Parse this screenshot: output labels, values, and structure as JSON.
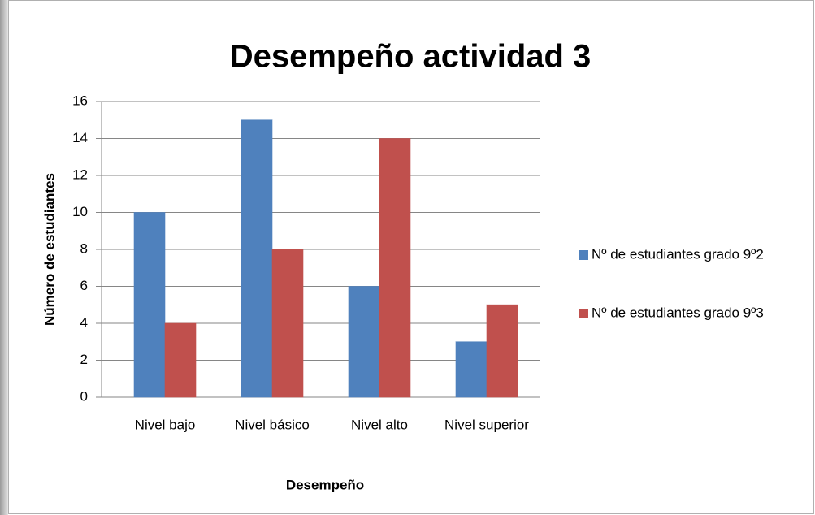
{
  "chart_data": {
    "type": "bar",
    "title": "Desempeño actividad 3",
    "x_label": "Desempeño",
    "y_label": "Número de estudiantes",
    "categories": [
      "Nivel bajo",
      "Nivel básico",
      "Nivel alto",
      "Nivel superior"
    ],
    "series": [
      {
        "name": "Nº de estudiantes grado 9º2",
        "color": "#4f81bd",
        "values": [
          10,
          15,
          6,
          3
        ]
      },
      {
        "name": "Nº de estudiantes grado 9º3",
        "color": "#c0504d",
        "values": [
          4,
          8,
          14,
          5
        ]
      }
    ],
    "ylim": [
      0,
      16
    ],
    "yticks": [
      0,
      2,
      4,
      6,
      8,
      10,
      12,
      14,
      16
    ],
    "grid": true,
    "legend": "right"
  }
}
